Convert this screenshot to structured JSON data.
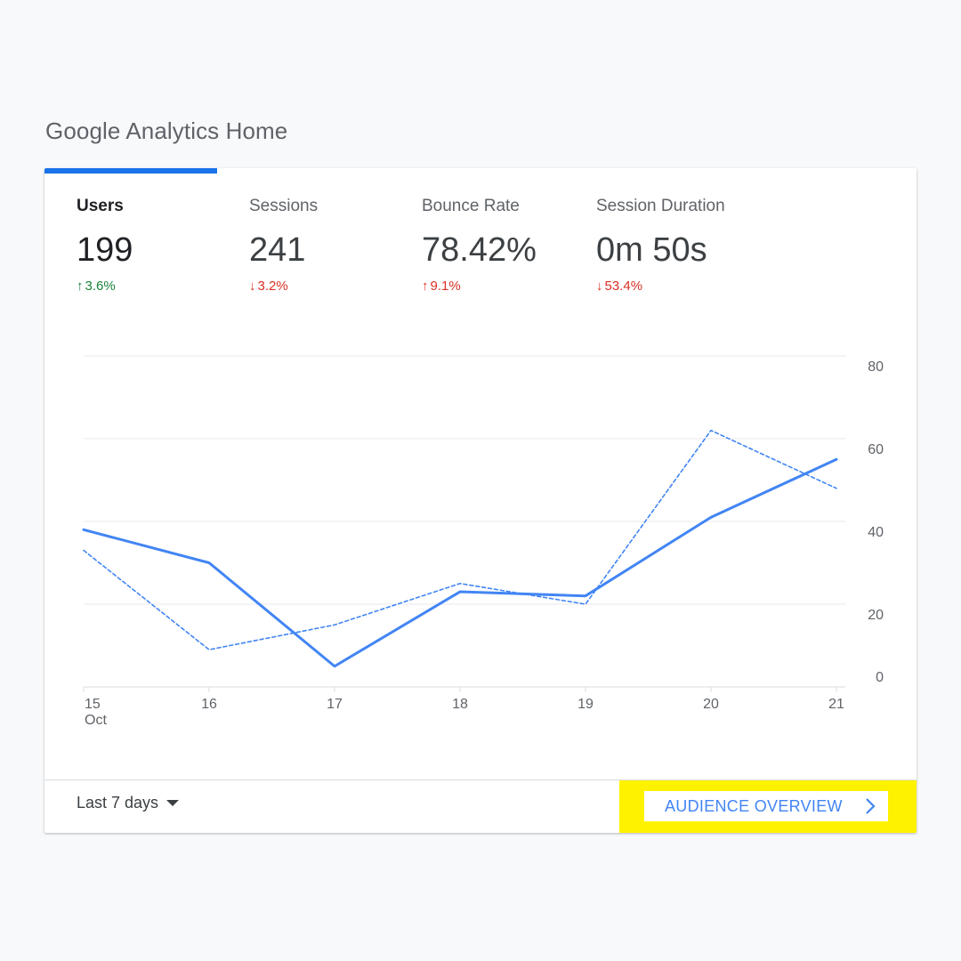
{
  "page": {
    "title": "Google Analytics Home"
  },
  "metrics": [
    {
      "label": "Users",
      "value": "199",
      "change": "3.6%",
      "direction": "up",
      "color": "#188038",
      "active": true
    },
    {
      "label": "Sessions",
      "value": "241",
      "change": "3.2%",
      "direction": "down",
      "color": "#d93025",
      "active": false
    },
    {
      "label": "Bounce Rate",
      "value": "78.42%",
      "change": "9.1%",
      "direction": "up",
      "color": "#d93025",
      "active": false
    },
    {
      "label": "Session Duration",
      "value": "0m 50s",
      "change": "53.4%",
      "direction": "down",
      "color": "#d93025",
      "active": false
    }
  ],
  "chart_data": {
    "type": "line",
    "categories": [
      "15",
      "16",
      "17",
      "18",
      "19",
      "20",
      "21"
    ],
    "x_sublabel": "Oct",
    "y_ticks": [
      0,
      20,
      40,
      60,
      80
    ],
    "ylim": [
      0,
      80
    ],
    "grid": true,
    "series": [
      {
        "values": [
          38,
          30,
          5,
          23,
          22,
          41,
          55
        ],
        "style": "solid",
        "color": "#4285f4"
      },
      {
        "values": [
          33,
          9,
          15,
          25,
          20,
          62,
          48
        ],
        "style": "dashed",
        "color": "#4285f4"
      }
    ]
  },
  "footer": {
    "range_label": "Last 7 days",
    "audience_label": "AUDIENCE OVERVIEW"
  },
  "colors": {
    "accent": "#1a73e8",
    "line": "#4285f4",
    "highlight": "#fff200"
  }
}
